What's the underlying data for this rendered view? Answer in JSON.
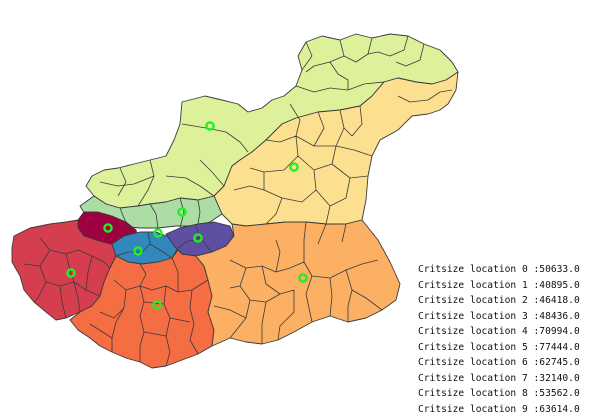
{
  "map": {
    "regions": [
      {
        "id": "r0",
        "location": 0,
        "color": "#ddf09a"
      },
      {
        "id": "r1",
        "location": 1,
        "color": "#fde08f"
      },
      {
        "id": "r2",
        "location": 2,
        "color": "#fcb063"
      },
      {
        "id": "r3",
        "location": 3,
        "color": "#f46d43"
      },
      {
        "id": "r4",
        "location": 4,
        "color": "#d53e4f"
      },
      {
        "id": "r5",
        "location": 5,
        "color": "#9e0142"
      },
      {
        "id": "r6",
        "location": 6,
        "color": "#3288bd"
      },
      {
        "id": "r7",
        "location": 7,
        "color": "#5e4fa2"
      },
      {
        "id": "r8",
        "location": 8,
        "color": "#abdda4"
      }
    ],
    "marker_color": "#22ee22"
  },
  "legend": {
    "lines": [
      "Critsize location 0 :50633.0",
      "Critsize location 1 :40895.0",
      "Critsize location 2 :46418.0",
      "Critsize location 3 :48436.0",
      "Critsize location 4 :70994.0",
      "Critsize location 5 :77444.0",
      "Critsize location 6 :62745.0",
      "Critsize location 7 :32140.0",
      "Critsize location 8 :53562.0",
      "Critsize location 9 :63614.0"
    ]
  }
}
